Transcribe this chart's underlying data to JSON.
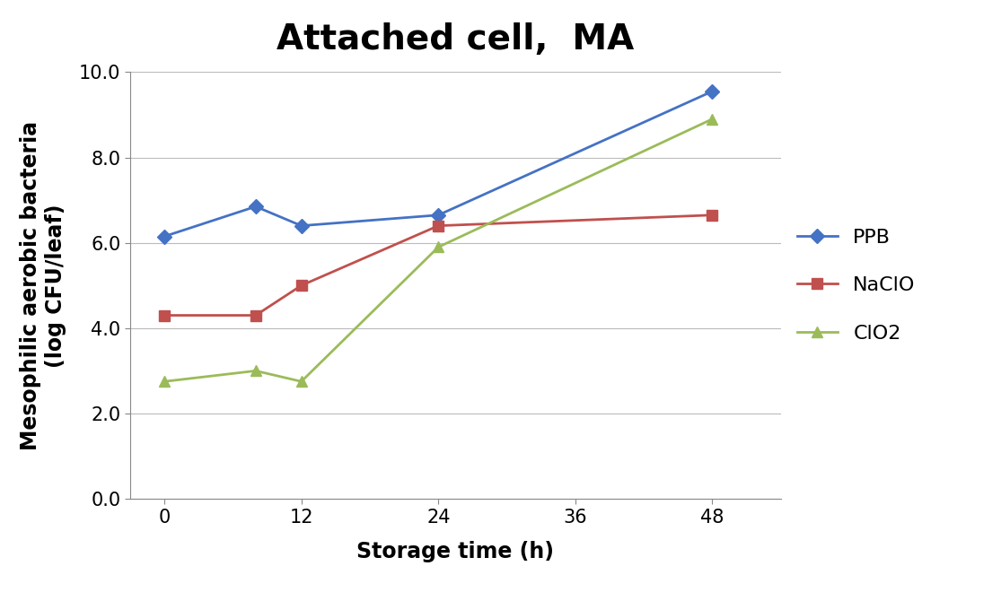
{
  "title": "Attached cell,  MA",
  "xlabel": "Storage time (h)",
  "ylabel": "Mesophilic aerobic bacteria\n(log CFU/leaf)",
  "xlim": [
    -3,
    54
  ],
  "ylim": [
    0.0,
    10.0
  ],
  "xticks": [
    0,
    12,
    24,
    36,
    48
  ],
  "yticks": [
    0.0,
    2.0,
    4.0,
    6.0,
    8.0,
    10.0
  ],
  "series": [
    {
      "label": "PPB",
      "x": [
        0,
        8,
        12,
        24,
        48
      ],
      "y": [
        6.15,
        6.85,
        6.4,
        6.65,
        9.55
      ],
      "color": "#4472C4",
      "marker": "D",
      "markersize": 8,
      "linewidth": 2.0
    },
    {
      "label": "NaClO",
      "x": [
        0,
        8,
        12,
        24,
        48
      ],
      "y": [
        4.3,
        4.3,
        5.0,
        6.4,
        6.65
      ],
      "color": "#C0504D",
      "marker": "s",
      "markersize": 9,
      "linewidth": 2.0
    },
    {
      "label": "ClO2",
      "x": [
        0,
        8,
        12,
        24,
        48
      ],
      "y": [
        2.75,
        3.0,
        2.75,
        5.9,
        8.9
      ],
      "color": "#9BBB59",
      "marker": "^",
      "markersize": 9,
      "linewidth": 2.0
    }
  ],
  "legend_fontsize": 16,
  "title_fontsize": 28,
  "axis_label_fontsize": 17,
  "tick_fontsize": 15,
  "background_color": "#FFFFFF",
  "grid_color": "#BBBBBB"
}
